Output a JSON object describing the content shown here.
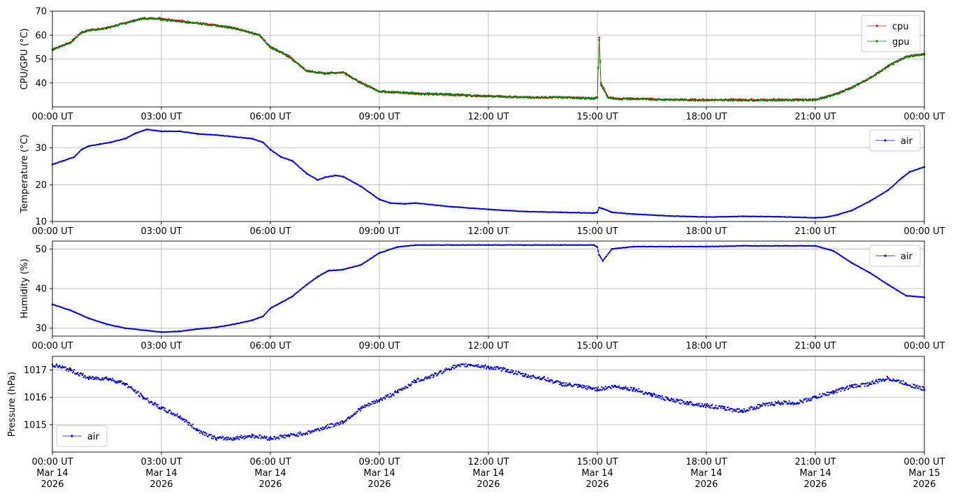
{
  "chart_data": [
    {
      "type": "line",
      "ylabel": "CPU/GPU (°C)",
      "ylim": [
        30,
        70
      ],
      "yticks": [
        40,
        50,
        60,
        70
      ],
      "grid": true,
      "legend_position": "top-right",
      "x_tick_labels": [
        "00:00 UT",
        "03:00 UT",
        "06:00 UT",
        "09:00 UT",
        "12:00 UT",
        "15:00 UT",
        "18:00 UT",
        "21:00 UT",
        "00:00 UT"
      ],
      "xlim": [
        "2026-03-14T00:00Z",
        "2026-03-15T00:00Z"
      ],
      "series": [
        {
          "name": "cpu",
          "color": "#ff0000",
          "hours": [
            0,
            0.5,
            0.8,
            1.0,
            1.5,
            2.0,
            2.5,
            3.0,
            4.0,
            5.0,
            5.7,
            6.0,
            6.5,
            7.0,
            7.5,
            8.0,
            8.5,
            9.0,
            10.0,
            11.0,
            12.0,
            13.0,
            14.0,
            14.9,
            15.0,
            15.05,
            15.1,
            15.3,
            15.6,
            16.0,
            17.0,
            18.0,
            19.0,
            20.0,
            21.0,
            21.5,
            22.0,
            22.5,
            23.0,
            23.5,
            24.0
          ],
          "values": [
            54,
            57,
            61,
            62,
            63,
            65,
            67,
            67,
            65,
            63,
            60,
            55,
            51,
            45,
            44,
            44.5,
            40,
            36.5,
            35.5,
            35,
            34.5,
            34,
            34,
            33.5,
            34,
            59,
            40,
            34,
            33.5,
            33.5,
            33,
            33,
            33,
            33,
            33,
            35,
            38,
            42,
            47,
            51,
            52
          ]
        },
        {
          "name": "gpu",
          "color": "#008000",
          "hours": [
            0,
            0.5,
            0.8,
            1.0,
            1.5,
            2.0,
            2.5,
            3.0,
            4.0,
            5.0,
            5.7,
            6.0,
            6.5,
            7.0,
            7.5,
            8.0,
            8.5,
            9.0,
            10.0,
            11.0,
            12.0,
            13.0,
            14.0,
            14.9,
            15.0,
            15.05,
            15.1,
            15.3,
            15.6,
            16.0,
            17.0,
            18.0,
            19.0,
            20.0,
            21.0,
            21.5,
            22.0,
            22.5,
            23.0,
            23.5,
            24.0
          ],
          "values": [
            54,
            57,
            61,
            62,
            63,
            65,
            67,
            66.5,
            65,
            63,
            60,
            55,
            51.5,
            45,
            44,
            44.5,
            40,
            36.5,
            35.8,
            35.2,
            34.5,
            34,
            34,
            33.5,
            34,
            58,
            39,
            33.8,
            33.3,
            33.3,
            33,
            32.8,
            32.8,
            32.8,
            33,
            35,
            38,
            42,
            47,
            51,
            52
          ]
        }
      ]
    },
    {
      "type": "line",
      "ylabel": "Temperature (°C)",
      "ylim": [
        10,
        36
      ],
      "yticks": [
        10,
        20,
        30
      ],
      "grid": true,
      "legend_position": "top-right",
      "x_tick_labels": [
        "00:00 UT",
        "03:00 UT",
        "06:00 UT",
        "09:00 UT",
        "12:00 UT",
        "15:00 UT",
        "18:00 UT",
        "21:00 UT",
        "00:00 UT"
      ],
      "series": [
        {
          "name": "air",
          "color": "#0000ff",
          "hours": [
            0,
            0.3,
            0.6,
            0.8,
            1.0,
            1.3,
            1.6,
            2.0,
            2.3,
            2.6,
            3.0,
            3.5,
            4.0,
            4.5,
            5.0,
            5.5,
            5.8,
            6.0,
            6.3,
            6.6,
            7.0,
            7.3,
            7.5,
            7.8,
            8.0,
            8.5,
            9.0,
            9.3,
            9.7,
            10.0,
            11.0,
            12.0,
            13.0,
            14.0,
            14.9,
            15.0,
            15.05,
            15.15,
            15.4,
            16.0,
            17.0,
            18.0,
            19.0,
            20.0,
            21.0,
            21.3,
            21.6,
            22.0,
            22.5,
            23.0,
            23.4,
            23.6,
            24.0
          ],
          "values": [
            25.5,
            26.5,
            27.5,
            29.5,
            30.5,
            31,
            31.5,
            32.5,
            34,
            35,
            34.5,
            34.5,
            33.8,
            33.5,
            33,
            32.5,
            31.5,
            29.5,
            27.5,
            26.5,
            23,
            21.3,
            22,
            22.5,
            22.2,
            19.5,
            16,
            15,
            14.8,
            15,
            14,
            13.3,
            12.7,
            12.5,
            12.3,
            12.5,
            13.8,
            13.5,
            12.5,
            12,
            11.5,
            11.2,
            11.4,
            11.3,
            11,
            11.2,
            11.8,
            13,
            15.5,
            18.5,
            22,
            23.5,
            24.8
          ]
        }
      ]
    },
    {
      "type": "line",
      "ylabel": "Humidity (%)",
      "ylim": [
        28,
        52
      ],
      "yticks": [
        30,
        40,
        50
      ],
      "grid": true,
      "legend_position": "top-right",
      "x_tick_labels": [
        "00:00 UT",
        "03:00 UT",
        "06:00 UT",
        "09:00 UT",
        "12:00 UT",
        "15:00 UT",
        "18:00 UT",
        "21:00 UT",
        "00:00 UT"
      ],
      "series": [
        {
          "name": "air",
          "color": "#0000ff",
          "hours": [
            0,
            0.5,
            1.0,
            1.5,
            2.0,
            2.5,
            3.0,
            3.5,
            4.0,
            4.5,
            5.0,
            5.5,
            5.8,
            6.0,
            6.3,
            6.6,
            7.0,
            7.3,
            7.6,
            8.0,
            8.5,
            9.0,
            9.5,
            10.0,
            11.0,
            12.0,
            13.0,
            14.0,
            14.9,
            15.0,
            15.05,
            15.15,
            15.4,
            16.0,
            17.0,
            18.0,
            19.0,
            20.0,
            21.0,
            21.5,
            22.0,
            22.5,
            23.0,
            23.5,
            24.0
          ],
          "values": [
            36,
            34.5,
            32.5,
            31,
            30,
            29.5,
            29,
            29.2,
            29.8,
            30.2,
            31,
            32,
            33,
            35,
            36.5,
            38,
            41,
            43,
            44.5,
            44.8,
            46,
            49,
            50.5,
            51,
            51,
            51,
            51,
            51,
            51,
            50.5,
            48.5,
            47,
            50,
            50.6,
            50.6,
            50.6,
            50.8,
            50.8,
            50.8,
            49.5,
            46.5,
            44,
            41,
            38.2,
            37.8
          ]
        }
      ]
    },
    {
      "type": "scatter",
      "ylabel": "Pressure (hPa)",
      "ylim": [
        1014,
        1017.5
      ],
      "yticks": [
        1015,
        1016,
        1017
      ],
      "grid": true,
      "legend_position": "bottom-left",
      "x_tick_labels": [
        "00:00 UT\nMar 14\n2026",
        "03:00 UT\nMar 14\n2026",
        "06:00 UT\nMar 14\n2026",
        "09:00 UT\nMar 14\n2026",
        "12:00 UT\nMar 14\n2026",
        "15:00 UT\nMar 14\n2026",
        "18:00 UT\nMar 14\n2026",
        "21:00 UT\nMar 14\n2026",
        "00:00 UT\nMar 15\n2026"
      ],
      "series": [
        {
          "name": "air",
          "color": "#0000ff",
          "hours": [
            0,
            0.5,
            1.0,
            1.5,
            2.0,
            2.5,
            3.0,
            3.5,
            4.0,
            4.5,
            5.0,
            5.5,
            6.0,
            6.5,
            7.0,
            7.5,
            8.0,
            8.5,
            9.0,
            9.5,
            10.0,
            10.5,
            11.0,
            11.5,
            12.0,
            12.5,
            13.0,
            13.5,
            14.0,
            14.5,
            15.0,
            15.5,
            16.0,
            16.5,
            17.0,
            17.5,
            18.0,
            18.5,
            19.0,
            19.5,
            20.0,
            20.5,
            21.0,
            21.5,
            22.0,
            22.5,
            23.0,
            23.5,
            24.0
          ],
          "values": [
            1017.2,
            1017,
            1016.7,
            1016.7,
            1016.5,
            1016,
            1015.6,
            1015.3,
            1014.8,
            1014.5,
            1014.5,
            1014.6,
            1014.5,
            1014.6,
            1014.7,
            1014.9,
            1015.1,
            1015.6,
            1015.9,
            1016.2,
            1016.6,
            1016.8,
            1017.1,
            1017.2,
            1017.1,
            1017.0,
            1016.8,
            1016.7,
            1016.5,
            1016.4,
            1016.3,
            1016.4,
            1016.3,
            1016.1,
            1015.9,
            1015.8,
            1015.7,
            1015.6,
            1015.5,
            1015.7,
            1015.8,
            1015.8,
            1016.0,
            1016.2,
            1016.4,
            1016.5,
            1016.7,
            1016.5,
            1016.3
          ]
        }
      ]
    }
  ]
}
